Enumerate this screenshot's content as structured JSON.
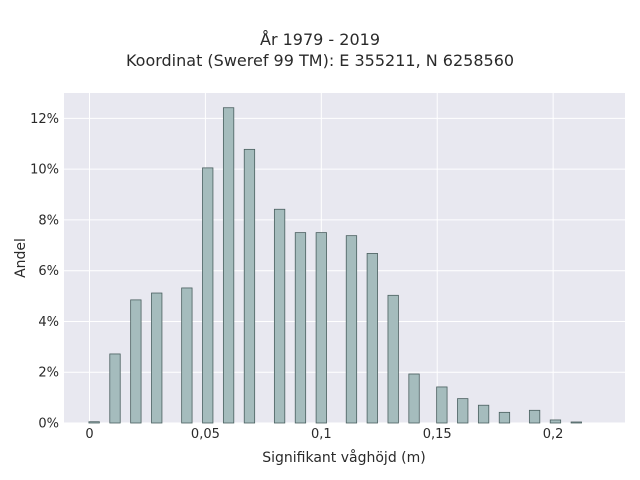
{
  "chart_data": {
    "type": "bar",
    "title_lines": [
      "År 1979 - 2019",
      "Koordinat (Sweref 99 TM): E 355211, N 6258560"
    ],
    "xlabel": "Signifikant våghöjd (m)",
    "ylabel": "Andel",
    "xlim": [
      -0.011,
      0.231
    ],
    "ylim": [
      0,
      13
    ],
    "xticks": [
      0,
      0.05,
      0.1,
      0.15,
      0.2
    ],
    "xtick_labels": [
      "0",
      "0,05",
      "0,1",
      "0,15",
      "0,2"
    ],
    "yticks": [
      0,
      2,
      4,
      6,
      8,
      10,
      12
    ],
    "ytick_labels": [
      "0%",
      "2%",
      "4%",
      "6%",
      "8%",
      "10%",
      "12%"
    ],
    "bar_width": 0.0045,
    "x": [
      0.002,
      0.011,
      0.02,
      0.029,
      0.042,
      0.051,
      0.06,
      0.069,
      0.082,
      0.091,
      0.1,
      0.113,
      0.122,
      0.131,
      0.14,
      0.152,
      0.161,
      0.17,
      0.179,
      0.192,
      0.201,
      0.21
    ],
    "values": [
      0.05,
      2.72,
      4.85,
      5.12,
      5.32,
      10.05,
      12.42,
      10.78,
      8.42,
      7.5,
      7.5,
      7.38,
      6.68,
      5.03,
      1.93,
      1.42,
      0.96,
      0.7,
      0.42,
      0.5,
      0.12,
      0.04
    ],
    "grid": true,
    "colors": {
      "bar_fill": "#a5bcbd",
      "bar_stroke": "#4a5f5f",
      "plot_bg": "#e8e8f0",
      "grid": "#ffffff"
    }
  }
}
